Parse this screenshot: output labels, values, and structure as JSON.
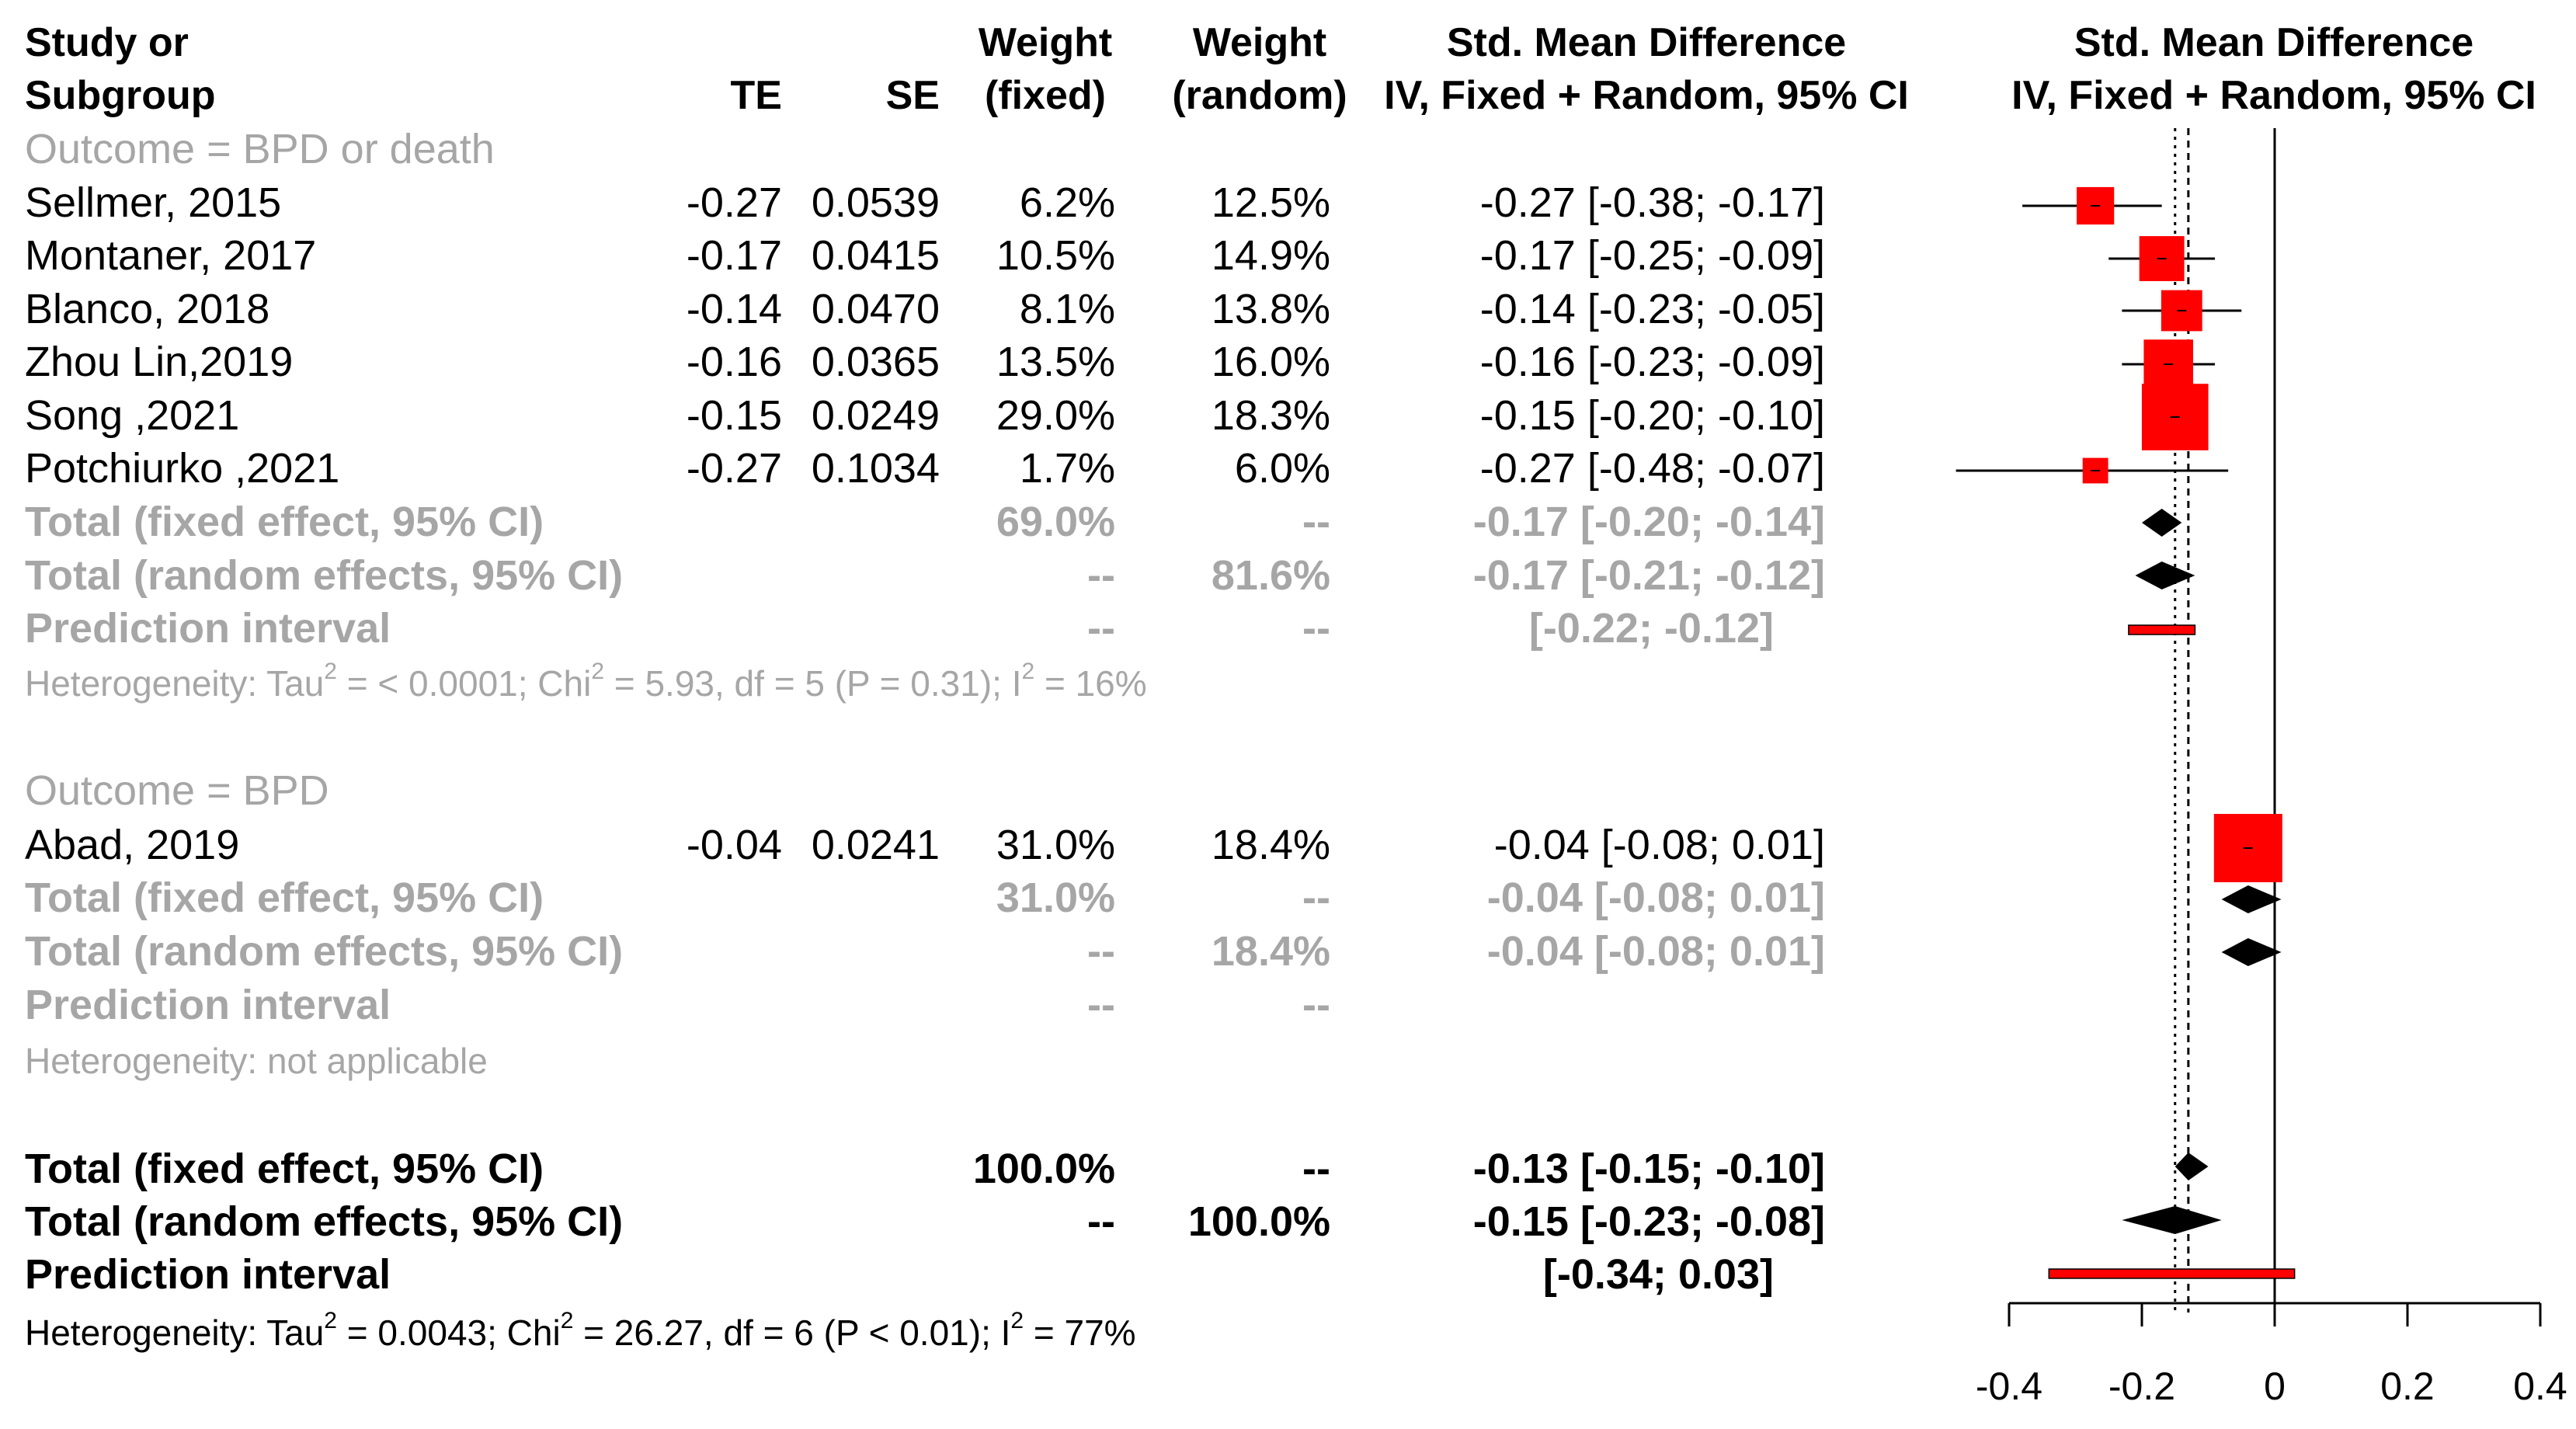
{
  "headers": {
    "study": [
      "Study or",
      "Subgroup"
    ],
    "te": "TE",
    "se": "SE",
    "wf": [
      "Weight",
      "(fixed)"
    ],
    "wr": [
      "Weight",
      "(random)"
    ],
    "ci": [
      "Std. Mean Difference",
      "IV, Fixed + Random, 95% CI"
    ],
    "plot": [
      "Std. Mean Difference",
      "IV, Fixed + Random, 95% CI"
    ]
  },
  "subgroups": [
    {
      "label": "Outcome = BPD or death",
      "studies": [
        {
          "name": "Sellmer, 2015",
          "te": "-0.27",
          "se": "0.0539",
          "wf": "6.2%",
          "wr": "12.5%",
          "ci": "-0.27 [-0.38; -0.17]"
        },
        {
          "name": "Montaner, 2017",
          "te": "-0.17",
          "se": "0.0415",
          "wf": "10.5%",
          "wr": "14.9%",
          "ci": "-0.17 [-0.25; -0.09]"
        },
        {
          "name": "Blanco, 2018",
          "te": "-0.14",
          "se": "0.0470",
          "wf": "8.1%",
          "wr": "13.8%",
          "ci": "-0.14 [-0.23; -0.05]"
        },
        {
          "name": "Zhou Lin,2019",
          "te": "-0.16",
          "se": "0.0365",
          "wf": "13.5%",
          "wr": "16.0%",
          "ci": "-0.16 [-0.23; -0.09]"
        },
        {
          "name": "Song ,2021",
          "te": "-0.15",
          "se": "0.0249",
          "wf": "29.0%",
          "wr": "18.3%",
          "ci": "-0.15 [-0.20; -0.10]"
        },
        {
          "name": "Potchiurko ,2021",
          "te": "-0.27",
          "se": "0.1034",
          "wf": "1.7%",
          "wr": "6.0%",
          "ci": "-0.27 [-0.48; -0.07]"
        }
      ],
      "fixed": {
        "label": "Total (fixed effect, 95% CI)",
        "wf": "69.0%",
        "wr": "--",
        "ci": "-0.17 [-0.20; -0.14]"
      },
      "random": {
        "label": "Total (random effects, 95% CI)",
        "wf": "--",
        "wr": "81.6%",
        "ci": "-0.17 [-0.21; -0.12]"
      },
      "pred": {
        "label": "Prediction interval",
        "wf": "--",
        "wr": "--",
        "ci": "[-0.22; -0.12]"
      },
      "het": {
        "prefix": "Heterogeneity: Tau",
        "tau": " = < 0.0001; Chi",
        "chi": " = 5.93, df = 5 (P = 0.31); I",
        "i2": " = 16%"
      }
    },
    {
      "label": "Outcome = BPD",
      "studies": [
        {
          "name": "Abad, 2019",
          "te": "-0.04",
          "se": "0.0241",
          "wf": "31.0%",
          "wr": "18.4%",
          "ci": "-0.04 [-0.08;  0.01]"
        }
      ],
      "fixed": {
        "label": "Total (fixed effect, 95% CI)",
        "wf": "31.0%",
        "wr": "--",
        "ci": "-0.04 [-0.08;  0.01]"
      },
      "random": {
        "label": "Total (random effects, 95% CI)",
        "wf": "--",
        "wr": "18.4%",
        "ci": "-0.04 [-0.08;  0.01]"
      },
      "pred": {
        "label": "Prediction interval",
        "wf": "--",
        "wr": "--",
        "ci": ""
      },
      "het_text": "Heterogeneity: not applicable"
    }
  ],
  "overall": {
    "fixed": {
      "label": "Total (fixed effect, 95% CI)",
      "wf": "100.0%",
      "wr": "--",
      "ci": "-0.13 [-0.15; -0.10]"
    },
    "random": {
      "label": "Total (random effects, 95% CI)",
      "wf": "--",
      "wr": "100.0%",
      "ci": "-0.15 [-0.23; -0.08]"
    },
    "pred": {
      "label": "Prediction interval",
      "ci": "[-0.34;  0.03]"
    },
    "het": {
      "prefix": "Heterogeneity: Tau",
      "tau": " = 0.0043; Chi",
      "chi": " = 26.27, df = 6 (P < 0.01); I",
      "i2": " = 77%"
    }
  },
  "sup2": "2",
  "colors": {
    "study_square": "#ff0000",
    "diamond": "#000000",
    "prediction_bar": "#ff0000",
    "grey_text": "#a6a6a6"
  },
  "chart_data": {
    "type": "forest",
    "x_axis": {
      "ticks": [
        "-0.4",
        "-0.2",
        "0",
        "0.2",
        "0.4"
      ],
      "xlim": [
        -0.4,
        0.4
      ]
    },
    "reference_lines": {
      "null": 0,
      "fixed": -0.13,
      "random": -0.15
    },
    "studies": [
      {
        "name": "Sellmer, 2015",
        "te": -0.27,
        "lower": -0.38,
        "upper": -0.17,
        "weight_fixed": 6.2
      },
      {
        "name": "Montaner, 2017",
        "te": -0.17,
        "lower": -0.25,
        "upper": -0.09,
        "weight_fixed": 10.5
      },
      {
        "name": "Blanco, 2018",
        "te": -0.14,
        "lower": -0.23,
        "upper": -0.05,
        "weight_fixed": 8.1
      },
      {
        "name": "Zhou Lin,2019",
        "te": -0.16,
        "lower": -0.23,
        "upper": -0.09,
        "weight_fixed": 13.5
      },
      {
        "name": "Song ,2021",
        "te": -0.15,
        "lower": -0.2,
        "upper": -0.1,
        "weight_fixed": 29.0
      },
      {
        "name": "Potchiurko ,2021",
        "te": -0.27,
        "lower": -0.48,
        "upper": -0.07,
        "weight_fixed": 1.7
      },
      {
        "name": "Abad, 2019",
        "te": -0.04,
        "lower": -0.08,
        "upper": 0.01,
        "weight_fixed": 31.0
      }
    ],
    "summaries": [
      {
        "label": "Subgroup BPD or death fixed",
        "te": -0.17,
        "lower": -0.2,
        "upper": -0.14
      },
      {
        "label": "Subgroup BPD or death random",
        "te": -0.17,
        "lower": -0.21,
        "upper": -0.12
      },
      {
        "label": "Subgroup BPD fixed",
        "te": -0.04,
        "lower": -0.08,
        "upper": 0.01
      },
      {
        "label": "Subgroup BPD random",
        "te": -0.04,
        "lower": -0.08,
        "upper": 0.01
      },
      {
        "label": "Overall fixed",
        "te": -0.13,
        "lower": -0.15,
        "upper": -0.1
      },
      {
        "label": "Overall random",
        "te": -0.15,
        "lower": -0.23,
        "upper": -0.08
      }
    ],
    "prediction_intervals": [
      {
        "label": "Subgroup BPD or death",
        "lower": -0.22,
        "upper": -0.12
      },
      {
        "label": "Overall",
        "lower": -0.34,
        "upper": 0.03
      }
    ]
  }
}
